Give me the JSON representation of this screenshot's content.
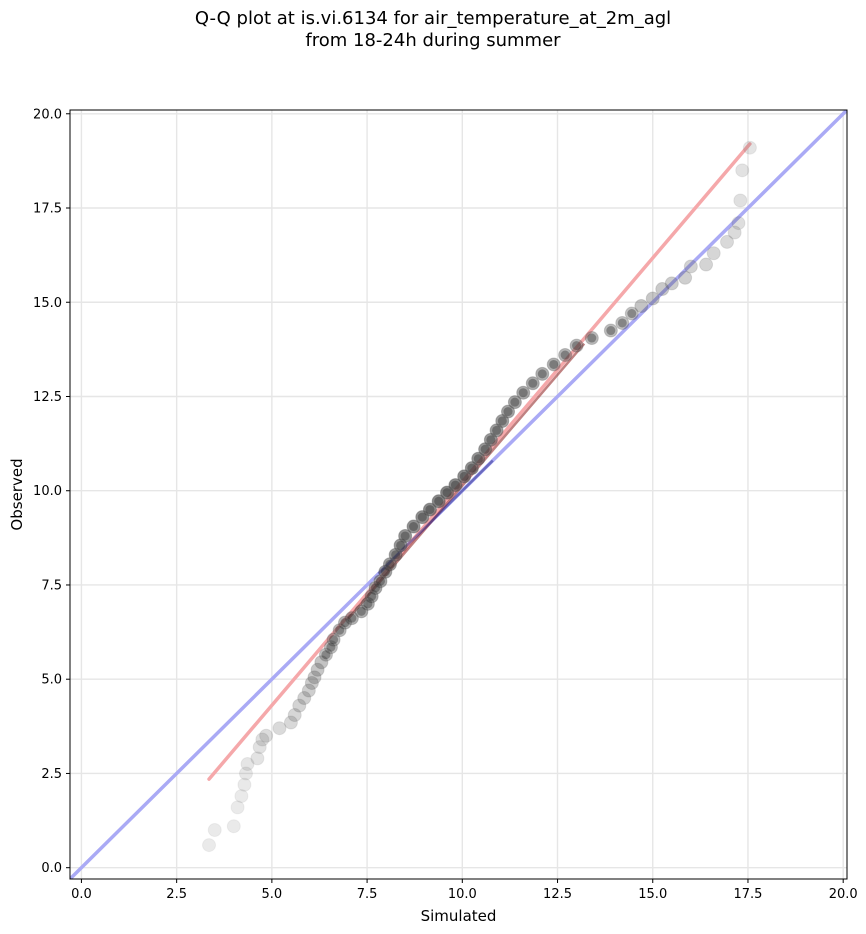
{
  "chart_data": {
    "type": "scatter",
    "title": "Q-Q plot at is.vi.6134 for air_temperature_at_2m_agl",
    "subtitle": "from 18-24h during summer",
    "xlabel": "Simulated",
    "ylabel": "Observed",
    "xlim": [
      -0.3,
      20.1
    ],
    "ylim": [
      -0.3,
      20.1
    ],
    "x_ticks": [
      "0.0",
      "2.5",
      "5.0",
      "7.5",
      "10.0",
      "12.5",
      "15.0",
      "17.5",
      "20.0"
    ],
    "y_ticks": [
      "0.0",
      "2.5",
      "5.0",
      "7.5",
      "10.0",
      "12.5",
      "15.0",
      "17.5",
      "20.0"
    ],
    "grid": true,
    "colors": {
      "points": "#555555",
      "points_center": "#1a1a1a",
      "identity_line": "#aaaaf5",
      "fit_line": "#f5a8aa",
      "central_red": "#8b1a1a",
      "central_blue": "#2a2a8a"
    },
    "reference_lines": [
      {
        "kind": "identity",
        "x": [
          -0.3,
          20.1
        ],
        "y": [
          -0.3,
          20.1
        ]
      },
      {
        "kind": "fit",
        "x": [
          3.35,
          17.55
        ],
        "y": [
          2.35,
          19.2
        ]
      }
    ],
    "series": [
      {
        "values": [
          [
            3.35,
            0.6
          ],
          [
            3.5,
            1.0
          ],
          [
            4.0,
            1.1
          ],
          [
            4.1,
            1.6
          ],
          [
            4.2,
            1.9
          ],
          [
            4.28,
            2.2
          ],
          [
            4.32,
            2.5
          ],
          [
            4.36,
            2.75
          ],
          [
            4.62,
            2.9
          ],
          [
            4.68,
            3.2
          ],
          [
            4.75,
            3.4
          ],
          [
            4.85,
            3.5
          ],
          [
            5.2,
            3.7
          ],
          [
            5.5,
            3.85
          ],
          [
            5.6,
            4.05
          ],
          [
            5.72,
            4.3
          ],
          [
            5.85,
            4.5
          ],
          [
            5.97,
            4.7
          ],
          [
            6.05,
            4.9
          ],
          [
            6.12,
            5.05
          ],
          [
            6.2,
            5.25
          ],
          [
            6.3,
            5.45
          ],
          [
            6.42,
            5.65
          ],
          [
            6.55,
            5.85
          ],
          [
            6.62,
            6.05
          ],
          [
            6.78,
            6.3
          ],
          [
            6.92,
            6.5
          ],
          [
            7.1,
            6.62
          ],
          [
            7.35,
            6.8
          ],
          [
            7.52,
            7.0
          ],
          [
            7.62,
            7.2
          ],
          [
            7.72,
            7.42
          ],
          [
            7.85,
            7.6
          ],
          [
            7.98,
            7.85
          ],
          [
            8.1,
            8.05
          ],
          [
            8.25,
            8.3
          ],
          [
            8.38,
            8.55
          ],
          [
            8.5,
            8.8
          ],
          [
            8.72,
            9.05
          ],
          [
            8.95,
            9.3
          ],
          [
            9.15,
            9.5
          ],
          [
            9.38,
            9.72
          ],
          [
            9.6,
            9.95
          ],
          [
            9.82,
            10.15
          ],
          [
            10.05,
            10.38
          ],
          [
            10.25,
            10.6
          ],
          [
            10.42,
            10.85
          ],
          [
            10.6,
            11.1
          ],
          [
            10.75,
            11.35
          ],
          [
            10.9,
            11.6
          ],
          [
            11.05,
            11.85
          ],
          [
            11.2,
            12.1
          ],
          [
            11.38,
            12.35
          ],
          [
            11.6,
            12.6
          ],
          [
            11.85,
            12.85
          ],
          [
            12.1,
            13.1
          ],
          [
            12.4,
            13.35
          ],
          [
            12.7,
            13.6
          ],
          [
            13.0,
            13.85
          ],
          [
            13.4,
            14.05
          ],
          [
            13.9,
            14.25
          ],
          [
            14.2,
            14.45
          ],
          [
            14.45,
            14.7
          ],
          [
            14.7,
            14.9
          ],
          [
            15.0,
            15.1
          ],
          [
            15.25,
            15.35
          ],
          [
            15.5,
            15.5
          ],
          [
            15.85,
            15.65
          ],
          [
            16.0,
            15.95
          ],
          [
            16.4,
            16.0
          ],
          [
            16.6,
            16.3
          ],
          [
            16.95,
            16.6
          ],
          [
            17.15,
            16.85
          ],
          [
            17.25,
            17.1
          ],
          [
            17.3,
            17.7
          ],
          [
            17.35,
            18.5
          ],
          [
            17.55,
            19.1
          ]
        ]
      }
    ]
  }
}
